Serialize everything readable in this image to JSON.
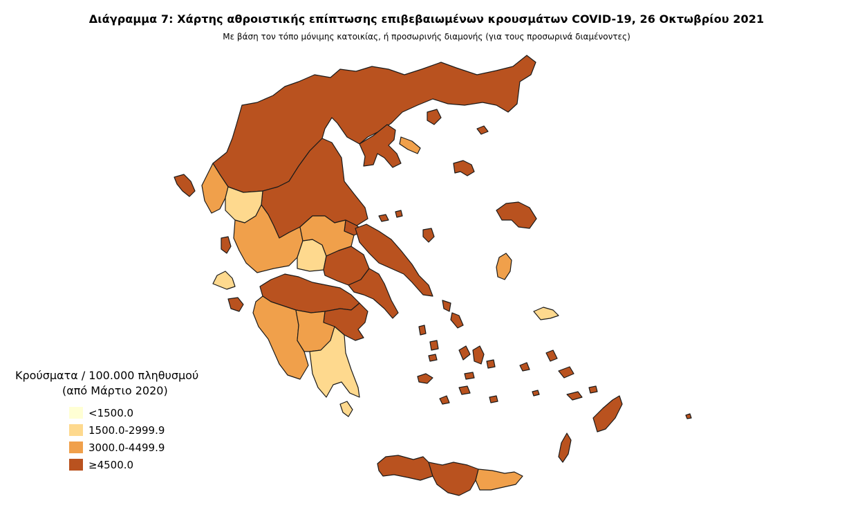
{
  "title": "Διάγραμμα 7: Χάρτης αθροιστικής επίπτωσης επιβεβαιωμένων κρουσμάτων COVID-19, 26 Οκτωβρίου 2021",
  "subtitle": "Με βάση τον τόπο μόνιμης κατοικίας, ή προσωρινής διαμονής (για τους προσωρινά διαμένοντες)",
  "legend": {
    "title": "Κρούσματα / 100.000 πληθυσμού",
    "subtitle": "(από Μάρτιο 2020)",
    "items": [
      {
        "label": "<1500.0",
        "color": "#FFFFD4"
      },
      {
        "label": "1500.0-2999.9",
        "color": "#FED98E"
      },
      {
        "label": "3000.0-4499.9",
        "color": "#F0A04B"
      },
      {
        "label": "≥4500.0",
        "color": "#B9521F"
      }
    ]
  },
  "map": {
    "regions": [
      {
        "name": "northern-greece",
        "class": 3
      },
      {
        "name": "thessaly",
        "class": 3
      },
      {
        "name": "epirus-west",
        "class": 2
      },
      {
        "name": "epirus-south",
        "class": 1
      },
      {
        "name": "aitoloakarnania",
        "class": 2
      },
      {
        "name": "fokida",
        "class": 1
      },
      {
        "name": "fthiotida",
        "class": 2
      },
      {
        "name": "viotia",
        "class": 3
      },
      {
        "name": "attica",
        "class": 3
      },
      {
        "name": "evia",
        "class": 3
      },
      {
        "name": "peloponnese-north",
        "class": 3
      },
      {
        "name": "ilia-messinia",
        "class": 2
      },
      {
        "name": "arcadia",
        "class": 2
      },
      {
        "name": "laconia",
        "class": 1
      },
      {
        "name": "argolida",
        "class": 3
      },
      {
        "name": "corfu",
        "class": 3
      },
      {
        "name": "lefkada",
        "class": 3
      },
      {
        "name": "kefalonia",
        "class": 1
      },
      {
        "name": "zakynthos",
        "class": 3
      },
      {
        "name": "thasos",
        "class": 3
      },
      {
        "name": "samothraki",
        "class": 3
      },
      {
        "name": "lemnos",
        "class": 3
      },
      {
        "name": "lesvos",
        "class": 3
      },
      {
        "name": "chios",
        "class": 2
      },
      {
        "name": "samos",
        "class": 1
      },
      {
        "name": "skyros",
        "class": 3
      },
      {
        "name": "chalkidiki-athos",
        "class": 2
      },
      {
        "name": "crete-west",
        "class": 3
      },
      {
        "name": "crete-central",
        "class": 3
      },
      {
        "name": "crete-east",
        "class": 2
      },
      {
        "name": "rhodes",
        "class": 3
      },
      {
        "name": "karpathos",
        "class": 3
      },
      {
        "name": "kos",
        "class": 3
      },
      {
        "name": "cyclades",
        "class": 3
      }
    ]
  }
}
